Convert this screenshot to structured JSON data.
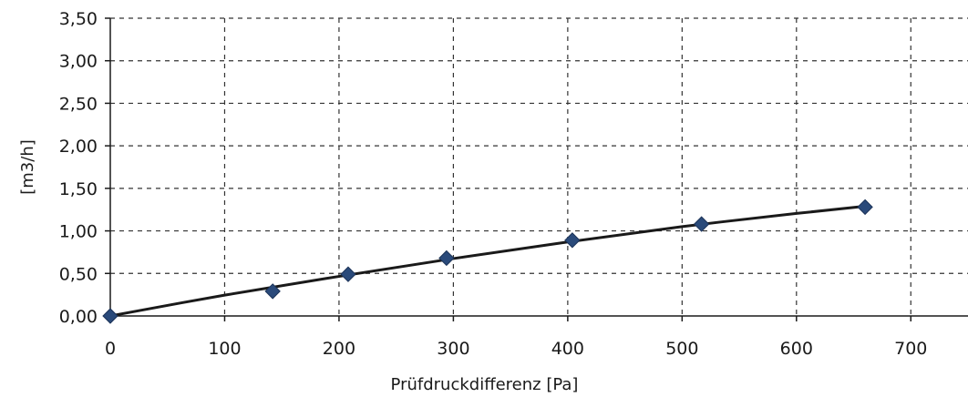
{
  "chart_data": {
    "type": "scatter",
    "title": "",
    "xlabel": "Prüfdruckdifferenz [Pa]",
    "ylabel": "[m3/h]",
    "xlim": [
      0,
      750
    ],
    "ylim": [
      0,
      3.5
    ],
    "grid": true,
    "x_ticks": [
      0,
      100,
      200,
      300,
      400,
      500,
      600,
      700
    ],
    "x_tick_labels": [
      "0",
      "100",
      "200",
      "300",
      "400",
      "500",
      "600",
      "700"
    ],
    "y_ticks": [
      0,
      0.5,
      1.0,
      1.5,
      2.0,
      2.5,
      3.0,
      3.5
    ],
    "y_tick_labels": [
      "0,00",
      "0,50",
      "1,00",
      "1,50",
      "2,00",
      "2,50",
      "3,00",
      "3,50"
    ],
    "series": [
      {
        "kind": "points",
        "marker": "diamond",
        "color": "#2a4a7a",
        "x": [
          0,
          142,
          208,
          294,
          404,
          517,
          660
        ],
        "y": [
          0.0,
          0.29,
          0.49,
          0.68,
          0.89,
          1.08,
          1.28
        ]
      },
      {
        "kind": "fit-curve",
        "color": "#1a1a1a",
        "x": [
          0,
          100,
          200,
          300,
          400,
          500,
          600,
          660
        ],
        "y": [
          0.0,
          0.245,
          0.465,
          0.675,
          0.87,
          1.05,
          1.205,
          1.29
        ]
      }
    ]
  }
}
